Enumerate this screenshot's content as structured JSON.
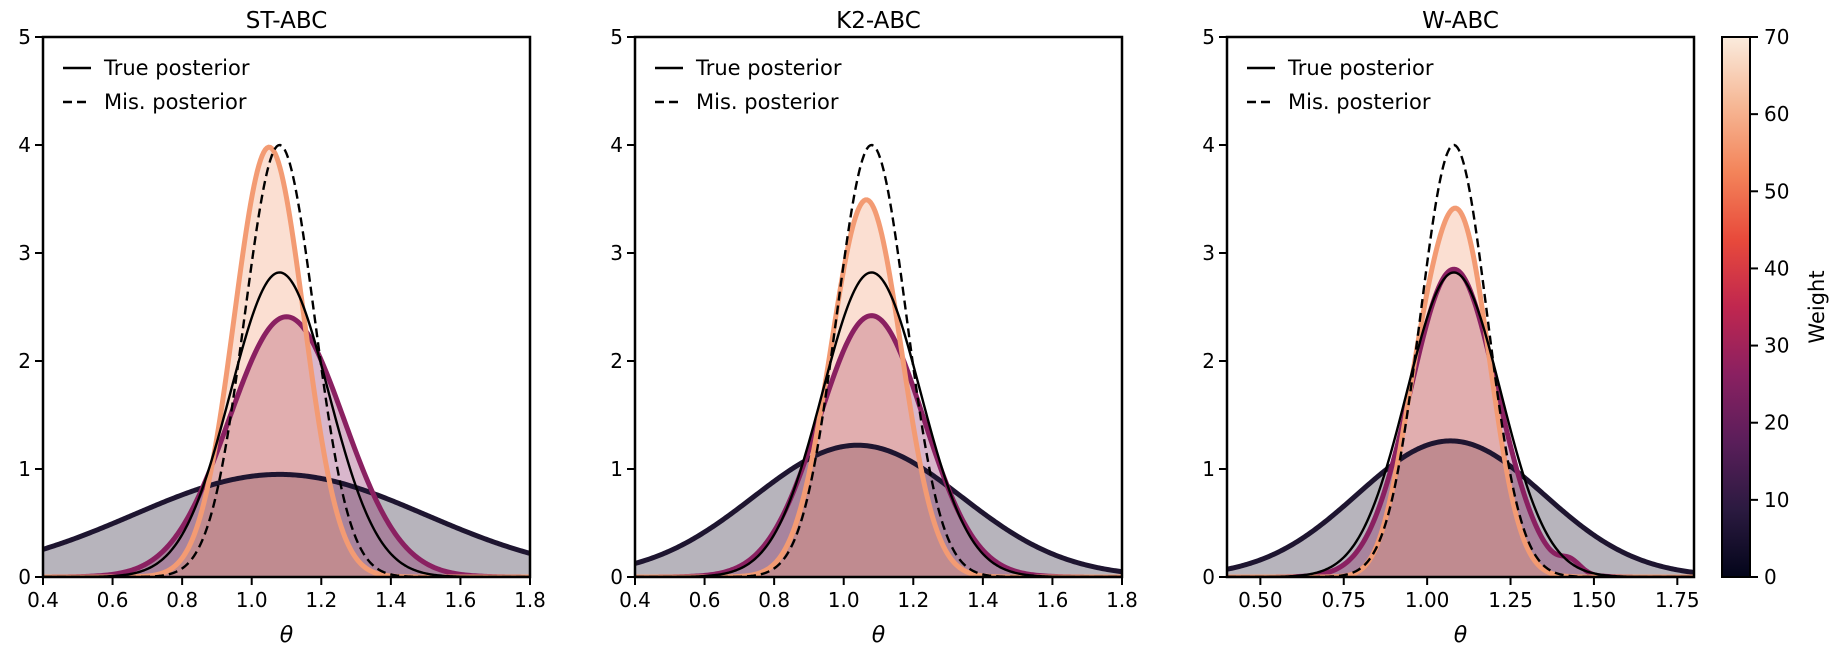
{
  "chart_data": [
    {
      "type": "area",
      "title": "ST-ABC",
      "xlabel": "θ",
      "xlim": [
        0.4,
        1.8
      ],
      "ylim": [
        0,
        5
      ],
      "xticks": [
        "0.4",
        "0.6",
        "0.8",
        "1.0",
        "1.2",
        "1.4",
        "1.6",
        "1.8"
      ],
      "yticks": [
        "0",
        "1",
        "2",
        "3",
        "4",
        "5"
      ],
      "legend": [
        "True posterior",
        "Mis. posterior"
      ],
      "reference_curves": [
        {
          "name": "True posterior",
          "style": "solid",
          "mean": 1.08,
          "sd": 0.141,
          "peak": 2.82
        },
        {
          "name": "Mis. posterior",
          "style": "dashed",
          "mean": 1.08,
          "sd": 0.1,
          "peak": 4.0
        }
      ],
      "weighted_posteriors": [
        {
          "weight": 5,
          "color": "#1e1530",
          "mean": 1.08,
          "sd": 0.42,
          "peak": 0.95,
          "components": [
            {
              "mu": 1.08,
              "s": 0.42,
              "a": 0.95
            }
          ]
        },
        {
          "weight": 25,
          "color": "#8a2061",
          "mean": 1.1,
          "sd": 0.165,
          "peak": 2.41,
          "components": [
            {
              "mu": 1.1,
              "s": 0.165,
              "a": 2.41
            }
          ]
        },
        {
          "weight": 60,
          "color": "#f39b73",
          "mean": 1.05,
          "sd": 0.1,
          "peak": 3.98,
          "components": [
            {
              "mu": 1.05,
              "s": 0.1,
              "a": 3.98
            }
          ]
        }
      ]
    },
    {
      "type": "area",
      "title": "K2-ABC",
      "xlabel": "θ",
      "xlim": [
        0.4,
        1.8
      ],
      "ylim": [
        0,
        5
      ],
      "xticks": [
        "0.4",
        "0.6",
        "0.8",
        "1.0",
        "1.2",
        "1.4",
        "1.6",
        "1.8"
      ],
      "yticks": [
        "0",
        "1",
        "2",
        "3",
        "4",
        "5"
      ],
      "legend": [
        "True posterior",
        "Mis. posterior"
      ],
      "reference_curves": [
        {
          "name": "True posterior",
          "style": "solid",
          "mean": 1.08,
          "sd": 0.141,
          "peak": 2.82
        },
        {
          "name": "Mis. posterior",
          "style": "dashed",
          "mean": 1.08,
          "sd": 0.1,
          "peak": 4.0
        }
      ],
      "weighted_posteriors": [
        {
          "weight": 5,
          "color": "#1e1530",
          "mean": 1.04,
          "sd": 0.3,
          "peak": 1.22,
          "components": [
            {
              "mu": 1.04,
              "s": 0.3,
              "a": 1.22
            }
          ]
        },
        {
          "weight": 25,
          "color": "#8a2061",
          "mean": 1.08,
          "sd": 0.15,
          "peak": 2.42,
          "components": [
            {
              "mu": 1.08,
              "s": 0.15,
              "a": 2.42
            }
          ]
        },
        {
          "weight": 60,
          "color": "#f39b73",
          "mean": 1.08,
          "sd": 0.11,
          "peak": 3.38,
          "components": [
            {
              "mu": 1.08,
              "s": 0.095,
              "a": 3.0
            },
            {
              "mu": 0.99,
              "s": 0.09,
              "a": 0.75
            }
          ]
        }
      ]
    },
    {
      "type": "area",
      "title": "W-ABC",
      "xlabel": "θ",
      "xlim": [
        0.4,
        1.8
      ],
      "ylim": [
        0,
        5
      ],
      "xticks": [
        "0.50",
        "0.75",
        "1.00",
        "1.25",
        "1.50",
        "1.75"
      ],
      "yticks": [
        "0",
        "1",
        "2",
        "3",
        "4",
        "5"
      ],
      "legend": [
        "True posterior",
        "Mis. posterior"
      ],
      "reference_curves": [
        {
          "name": "True posterior",
          "style": "solid",
          "mean": 1.08,
          "sd": 0.141,
          "peak": 2.82
        },
        {
          "name": "Mis. posterior",
          "style": "dashed",
          "mean": 1.08,
          "sd": 0.1,
          "peak": 4.0
        }
      ],
      "weighted_posteriors": [
        {
          "weight": 5,
          "color": "#1e1530",
          "mean": 1.07,
          "sd": 0.28,
          "peak": 1.26,
          "components": [
            {
              "mu": 1.07,
              "s": 0.28,
              "a": 1.26
            }
          ]
        },
        {
          "weight": 25,
          "color": "#8a2061",
          "mean": 1.08,
          "sd": 0.13,
          "peak": 2.85,
          "components": [
            {
              "mu": 1.08,
              "s": 0.13,
              "a": 2.85
            },
            {
              "mu": 1.43,
              "s": 0.03,
              "a": 0.1
            }
          ]
        },
        {
          "weight": 60,
          "color": "#f39b73",
          "mean": 1.08,
          "sd": 0.11,
          "peak": 3.6,
          "components": [
            {
              "mu": 1.1,
              "s": 0.09,
              "a": 3.2
            },
            {
              "mu": 0.97,
              "s": 0.07,
              "a": 1.0
            }
          ]
        }
      ]
    }
  ],
  "colorbar": {
    "label": "Weight",
    "ticks": [
      "0",
      "10",
      "20",
      "30",
      "40",
      "50",
      "60",
      "70"
    ],
    "range": [
      0,
      70
    ],
    "stops": [
      "#03051a",
      "#2b1a40",
      "#5a1e5a",
      "#8a2061",
      "#c0274f",
      "#e84a3b",
      "#f3845a",
      "#f6b896",
      "#faebdd"
    ]
  }
}
